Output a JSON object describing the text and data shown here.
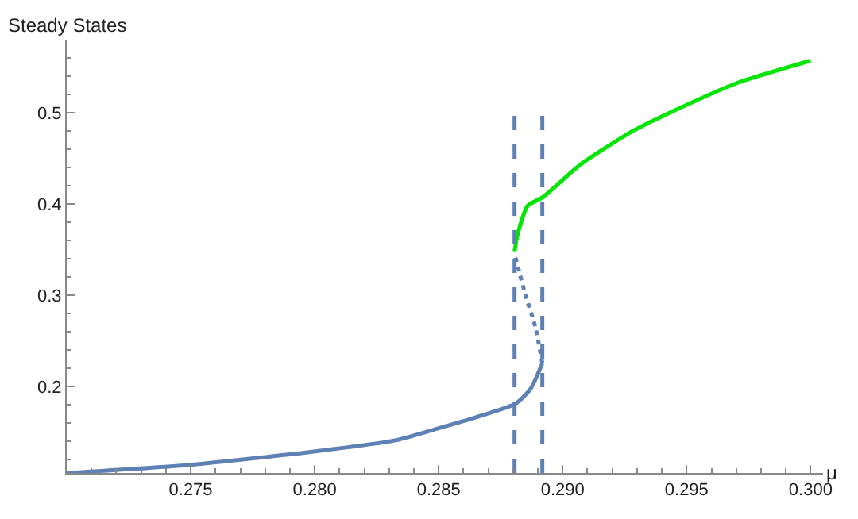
{
  "chart_data": {
    "type": "line",
    "xlabel": "μ",
    "ylabel": "Steady States",
    "xlim": [
      0.27,
      0.3005
    ],
    "ylim": [
      0.105,
      0.58
    ],
    "xticks": [
      0.275,
      {
        "value": 0.28,
        "label": "0.280"
      },
      0.285,
      {
        "value": 0.29,
        "label": "0.290"
      },
      0.295,
      {
        "value": 0.3,
        "label": "0.300"
      }
    ],
    "yticks": [
      0.2,
      0.3,
      0.4,
      0.5
    ],
    "marker": "none",
    "series": [
      {
        "color": "#5e81b5",
        "line_style": "solid",
        "x": [
          0.27,
          0.275,
          0.2801,
          0.2833,
          0.285,
          0.2865,
          0.2881,
          0.2887,
          0.28918
        ],
        "values": [
          0.105,
          0.114,
          0.129,
          0.141,
          0.154,
          0.166,
          0.181,
          0.197,
          0.225
        ]
      },
      {
        "color": "#5e81b5",
        "line_style": "dotted",
        "x": [
          0.28918,
          0.2889,
          0.2885,
          0.28806
        ],
        "values": [
          0.225,
          0.265,
          0.3,
          0.345
        ]
      },
      {
        "color": "#00e600",
        "line_style": "solid",
        "x": [
          0.28806,
          0.28817,
          0.28859,
          0.28918,
          0.29071,
          0.29284,
          0.29496,
          0.29708,
          0.3
        ],
        "values": [
          0.348,
          0.365,
          0.398,
          0.407,
          0.443,
          0.48,
          0.508,
          0.533,
          0.557
        ]
      },
      {
        "color": "#5e81b5",
        "line_style": "dashed",
        "x": [
          0.28806,
          0.28806
        ],
        "values": [
          0.105,
          0.502
        ]
      },
      {
        "color": "#5e81b5",
        "line_style": "dashed",
        "x": [
          0.28918,
          0.28918
        ],
        "values": [
          0.105,
          0.502
        ]
      }
    ]
  }
}
